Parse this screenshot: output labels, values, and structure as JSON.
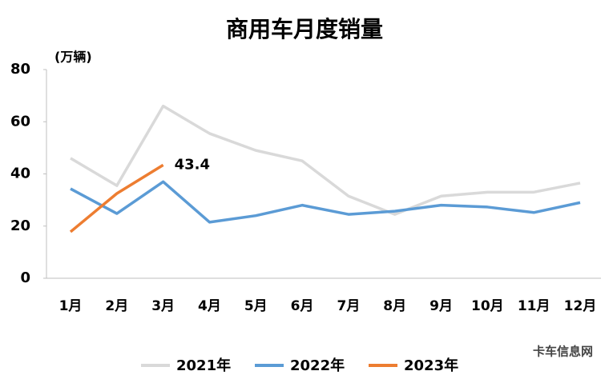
{
  "chart_data": {
    "type": "line",
    "title": "商用车月度销量",
    "y_label": "(万辆)",
    "source": "卡车信息网",
    "categories": [
      "1月",
      "2月",
      "3月",
      "4月",
      "5月",
      "6月",
      "7月",
      "8月",
      "9月",
      "10月",
      "11月",
      "12月"
    ],
    "series": [
      {
        "name": "2021年",
        "color": "#d9d9d9",
        "values": [
          46,
          35.5,
          66,
          55.5,
          49,
          45,
          31.5,
          24.5,
          31.5,
          33,
          33,
          36.5
        ]
      },
      {
        "name": "2022年",
        "color": "#5b9bd5",
        "values": [
          34.3,
          24.8,
          37,
          21.5,
          24,
          28,
          24.5,
          25.7,
          28,
          27.3,
          25.2,
          29
        ]
      },
      {
        "name": "2023年",
        "color": "#ed7d31",
        "values": [
          17.8,
          32.5,
          43.4,
          null,
          null,
          null,
          null,
          null,
          null,
          null,
          null,
          null
        ]
      }
    ],
    "annotated_point": "chart_data.series.2.values.2",
    "ylim": [
      0,
      80
    ],
    "yticks": [
      0,
      20,
      40,
      60,
      80
    ],
    "grid": false
  }
}
